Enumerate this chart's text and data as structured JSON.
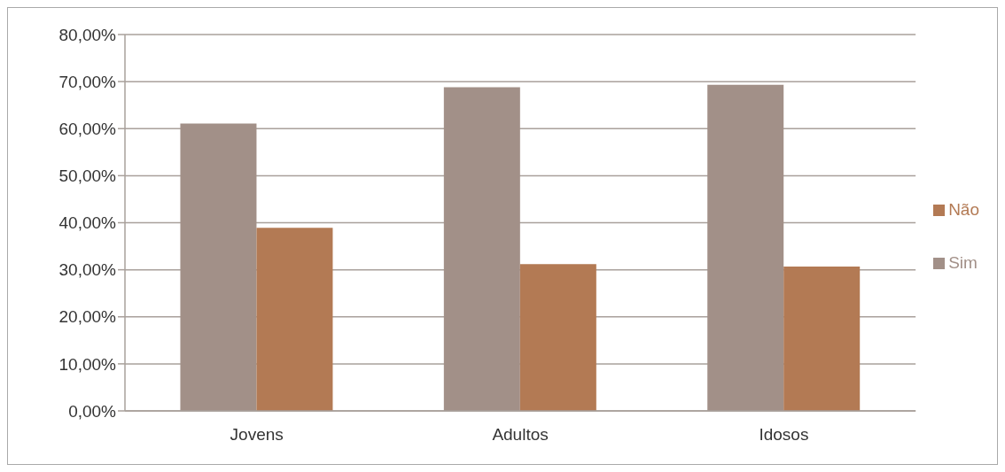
{
  "chart_data": {
    "type": "bar",
    "categories": [
      "Jovens",
      "Adultos",
      "Idosos"
    ],
    "series": [
      {
        "name": "Sim",
        "color": "#a29088",
        "values": [
          61.1,
          68.8,
          69.3
        ]
      },
      {
        "name": "Não",
        "color": "#b37a54",
        "values": [
          38.9,
          31.2,
          30.7
        ]
      }
    ],
    "ylim": [
      0,
      80
    ],
    "yticks": [
      {
        "value": 0,
        "label": "0,00%"
      },
      {
        "value": 10,
        "label": "10,00%"
      },
      {
        "value": 20,
        "label": "20,00%"
      },
      {
        "value": 30,
        "label": "30,00%"
      },
      {
        "value": 40,
        "label": "40,00%"
      },
      {
        "value": 50,
        "label": "50,00%"
      },
      {
        "value": 60,
        "label": "60,00%"
      },
      {
        "value": 70,
        "label": "70,00%"
      },
      {
        "value": 80,
        "label": "80,00%"
      }
    ],
    "grid": "y",
    "legend": "right"
  }
}
